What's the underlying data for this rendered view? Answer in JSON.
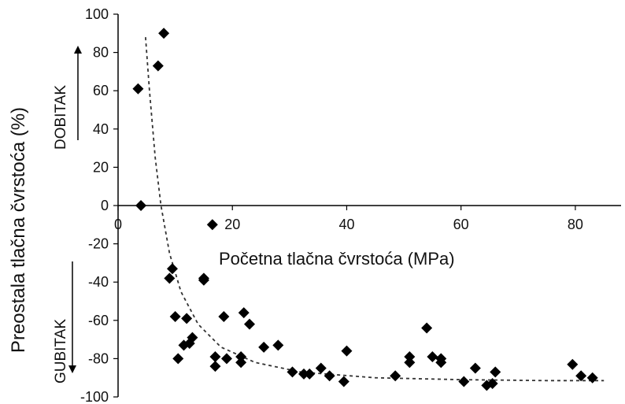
{
  "chart_data": {
    "type": "scatter",
    "title": "",
    "xlabel": "Početna tlačna čvrstoća (MPa)",
    "ylabel": "Preostala tlačna čvrstoća (%)",
    "xlim": [
      0,
      88
    ],
    "ylim": [
      -100,
      100
    ],
    "x_ticks": [
      "0",
      "20",
      "40",
      "60",
      "80"
    ],
    "y_ticks": [
      "100",
      "80",
      "60",
      "40",
      "20",
      "0",
      "-20",
      "-40",
      "-60",
      "-80",
      "-100"
    ],
    "gain_label": "DOBITAK",
    "loss_label": "GUBITAK",
    "grid": false,
    "legend": "none",
    "marker_color": "#000000",
    "trend_line_color": "#333333",
    "series": [
      {
        "values": [
          [
            3.5,
            61
          ],
          [
            4,
            0
          ],
          [
            7,
            73
          ],
          [
            8,
            90
          ],
          [
            16.5,
            -10
          ],
          [
            9,
            -38
          ],
          [
            9.5,
            -33
          ],
          [
            10,
            -58
          ],
          [
            10.5,
            -80
          ],
          [
            11.5,
            -73
          ],
          [
            12,
            -59
          ],
          [
            12.5,
            -72
          ],
          [
            13,
            -69
          ],
          [
            15,
            -38
          ],
          [
            15,
            -39
          ],
          [
            17,
            -79
          ],
          [
            17,
            -84
          ],
          [
            18.5,
            -58
          ],
          [
            19,
            -80
          ],
          [
            21.5,
            -82
          ],
          [
            21.5,
            -79
          ],
          [
            22,
            -56
          ],
          [
            23,
            -62
          ],
          [
            25.5,
            -74
          ],
          [
            28,
            -73
          ],
          [
            30.5,
            -87
          ],
          [
            32.5,
            -88
          ],
          [
            33.5,
            -88
          ],
          [
            35.5,
            -85
          ],
          [
            37,
            -89
          ],
          [
            39.5,
            -92
          ],
          [
            40,
            -76
          ],
          [
            48.5,
            -89
          ],
          [
            51,
            -79
          ],
          [
            51,
            -82
          ],
          [
            54,
            -64
          ],
          [
            55,
            -79
          ],
          [
            56.5,
            -80
          ],
          [
            56.5,
            -82
          ],
          [
            60.5,
            -92
          ],
          [
            62.5,
            -85
          ],
          [
            64.5,
            -94
          ],
          [
            65.5,
            -93
          ],
          [
            66,
            -87
          ],
          [
            79.5,
            -83
          ],
          [
            81,
            -89
          ],
          [
            83,
            -90
          ]
        ]
      }
    ],
    "trend_line": [
      [
        4.8,
        88
      ],
      [
        5.5,
        60
      ],
      [
        6.5,
        25
      ],
      [
        7.5,
        0
      ],
      [
        9,
        -25
      ],
      [
        11,
        -45
      ],
      [
        14,
        -62
      ],
      [
        18,
        -74
      ],
      [
        24,
        -82
      ],
      [
        32,
        -87
      ],
      [
        45,
        -90
      ],
      [
        60,
        -91
      ],
      [
        75,
        -91.5
      ],
      [
        85,
        -91.5
      ]
    ]
  }
}
